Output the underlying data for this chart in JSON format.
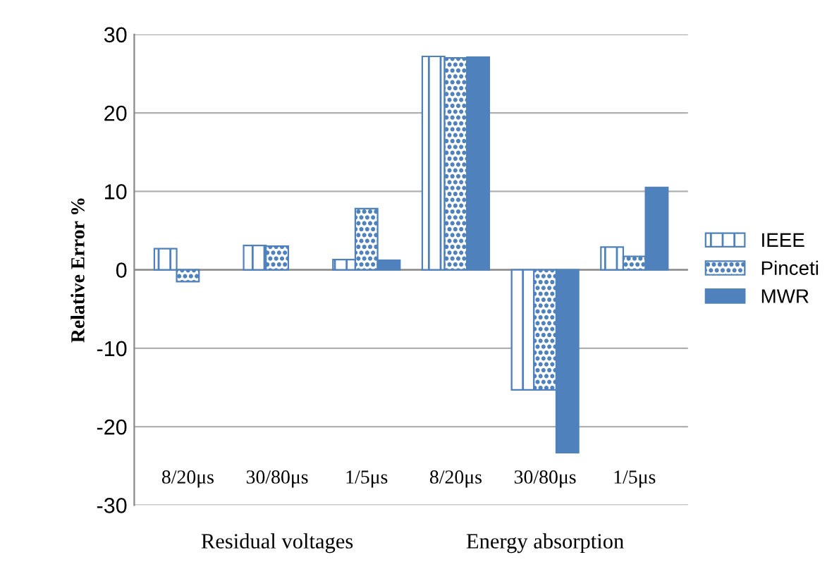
{
  "chart_data": {
    "type": "bar",
    "ylabel": "Relative Error %",
    "categories": [
      "8/20μs",
      "30/80μs",
      "1/5μs",
      "8/20μs",
      "30/80μs",
      "1/5μs"
    ],
    "annotations": [
      "Residual voltages",
      "Energy absorption"
    ],
    "series": [
      {
        "name": "IEEE",
        "color": "#4f81bd",
        "values": [
          2.7,
          3.1,
          1.3,
          27.2,
          -15.3,
          2.9
        ]
      },
      {
        "name": "Pinceti",
        "color": "#4f81bd",
        "values": [
          -1.5,
          3.0,
          7.8,
          27.0,
          -15.3,
          1.7
        ]
      },
      {
        "name": "MWR",
        "color": "#4f81bd",
        "values": [
          null,
          null,
          1.2,
          27.1,
          -23.3,
          10.5
        ]
      }
    ],
    "ylim": [
      -30,
      30
    ],
    "yticks": [
      -30,
      -20,
      -10,
      0,
      10,
      20,
      30
    ],
    "grid": "y",
    "legend": "right"
  }
}
